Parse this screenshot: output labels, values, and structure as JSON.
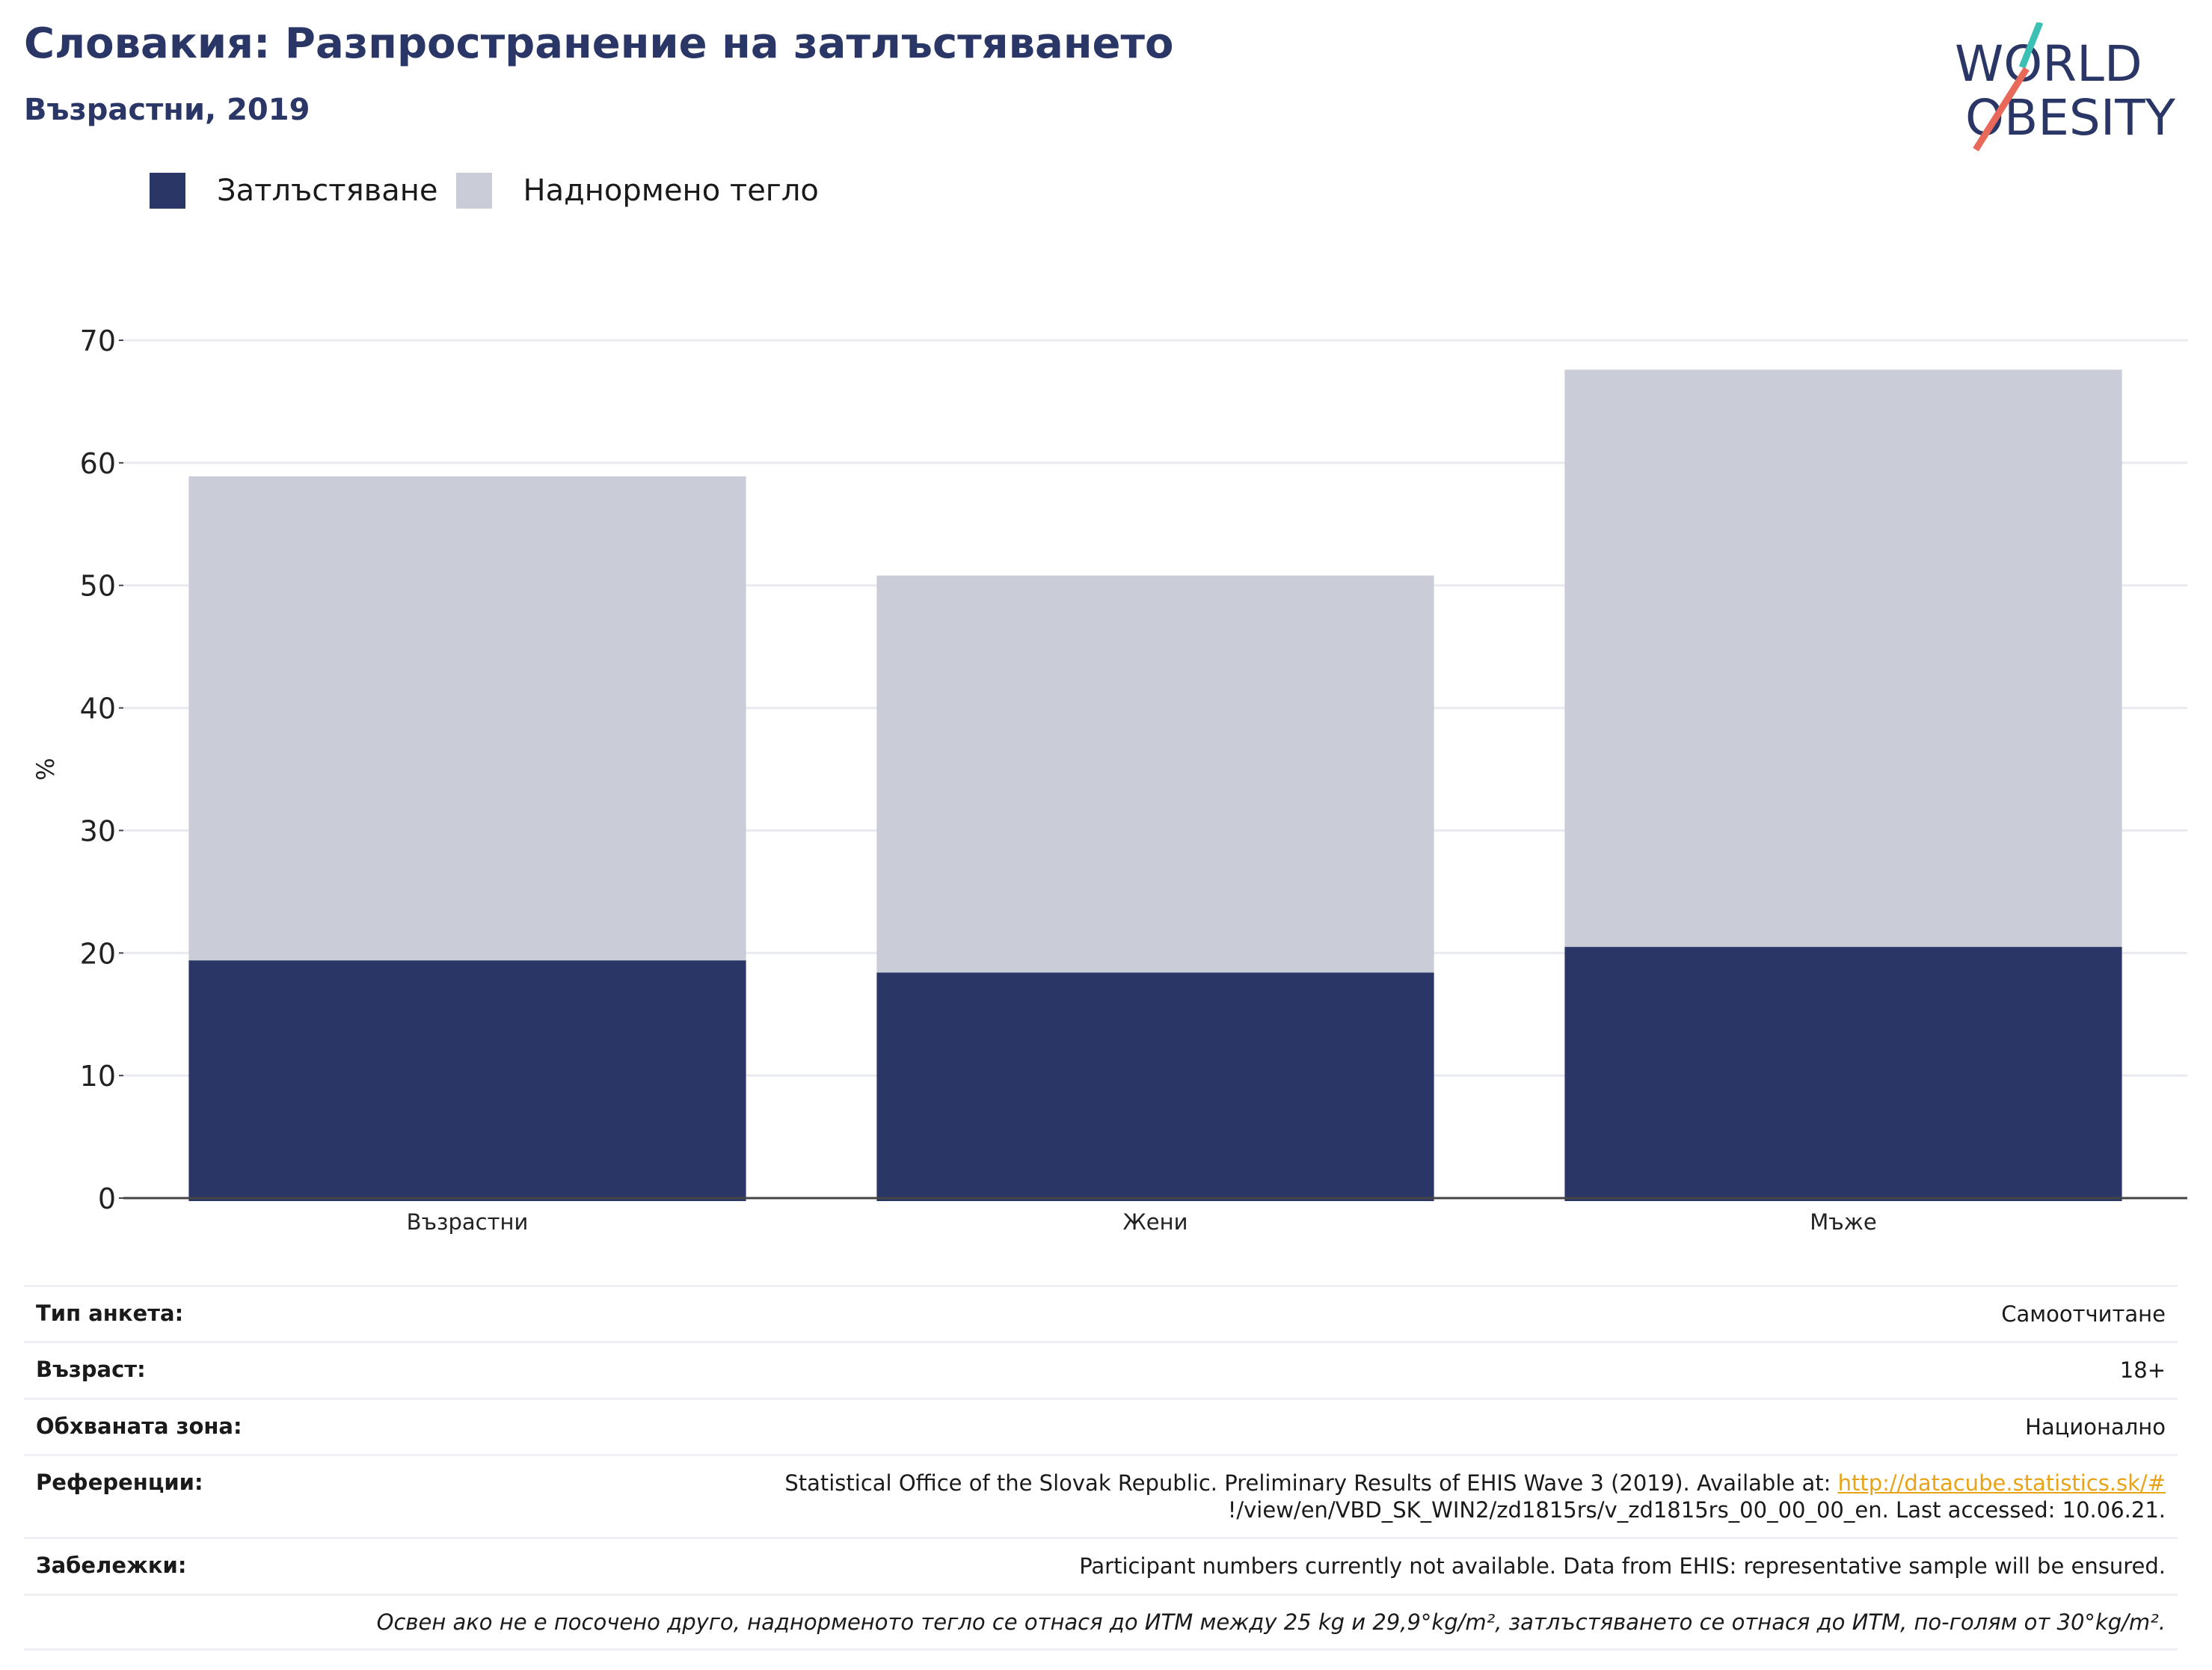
{
  "header": {
    "title": "Словакия: Разпространение на затлъстяването",
    "subtitle": "Възрастни, 2019"
  },
  "logo": {
    "line1": "WORLD",
    "line2": "OBESITY"
  },
  "legend": [
    {
      "label": "Затлъстяване",
      "color": "#2a3766"
    },
    {
      "label": "Наднормено тегло",
      "color": "#cacdd8"
    }
  ],
  "chart_data": {
    "type": "bar",
    "stacked": true,
    "categories": [
      "Възрастни",
      "Жени",
      "Мъже"
    ],
    "series": [
      {
        "name": "Затлъстяване",
        "values": [
          19.4,
          18.4,
          20.5
        ],
        "color": "#2a3766"
      },
      {
        "name": "Наднормено тегло",
        "values": [
          39.5,
          32.4,
          47.1
        ],
        "color": "#cacdd8"
      }
    ],
    "ylabel": "%",
    "ylim": [
      0,
      70
    ],
    "yticks": [
      0,
      10,
      20,
      30,
      40,
      50,
      60,
      70
    ],
    "grid": true,
    "legend_position": "top-left"
  },
  "meta": {
    "survey_type": {
      "label": "Тип анкета:",
      "value": "Самоотчитане"
    },
    "age": {
      "label": "Възраст:",
      "value": "18+"
    },
    "coverage": {
      "label": "Обхваната зона:",
      "value": "Национално"
    },
    "references": {
      "label": "Референции:",
      "text1": "Statistical Office of the Slovak Republic. Preliminary Results of EHIS Wave 3 (2019). Available at: ",
      "link": "http://datacube.statistics.sk/#",
      "text2": "!/view/en/VBD_SK_WIN2/zd1815rs/v_zd1815rs_00_00_00_en. Last accessed: 10.06.21."
    },
    "notes": {
      "label": "Забележки:",
      "value": "Participant numbers currently not available. Data from EHIS: representative sample will be ensured."
    },
    "footnote": "Освен ако не е посочено друго, наднорменото тегло се отнася до ИТМ между 25 kg и 29,9°kg/m², затлъстяването се отнася до ИТМ, по-голям от 30°kg/m²."
  },
  "colors": {
    "brand": "#2a3766",
    "teal": "#3cbfb4",
    "coral": "#e8685a",
    "grid": "#e8eaef"
  }
}
